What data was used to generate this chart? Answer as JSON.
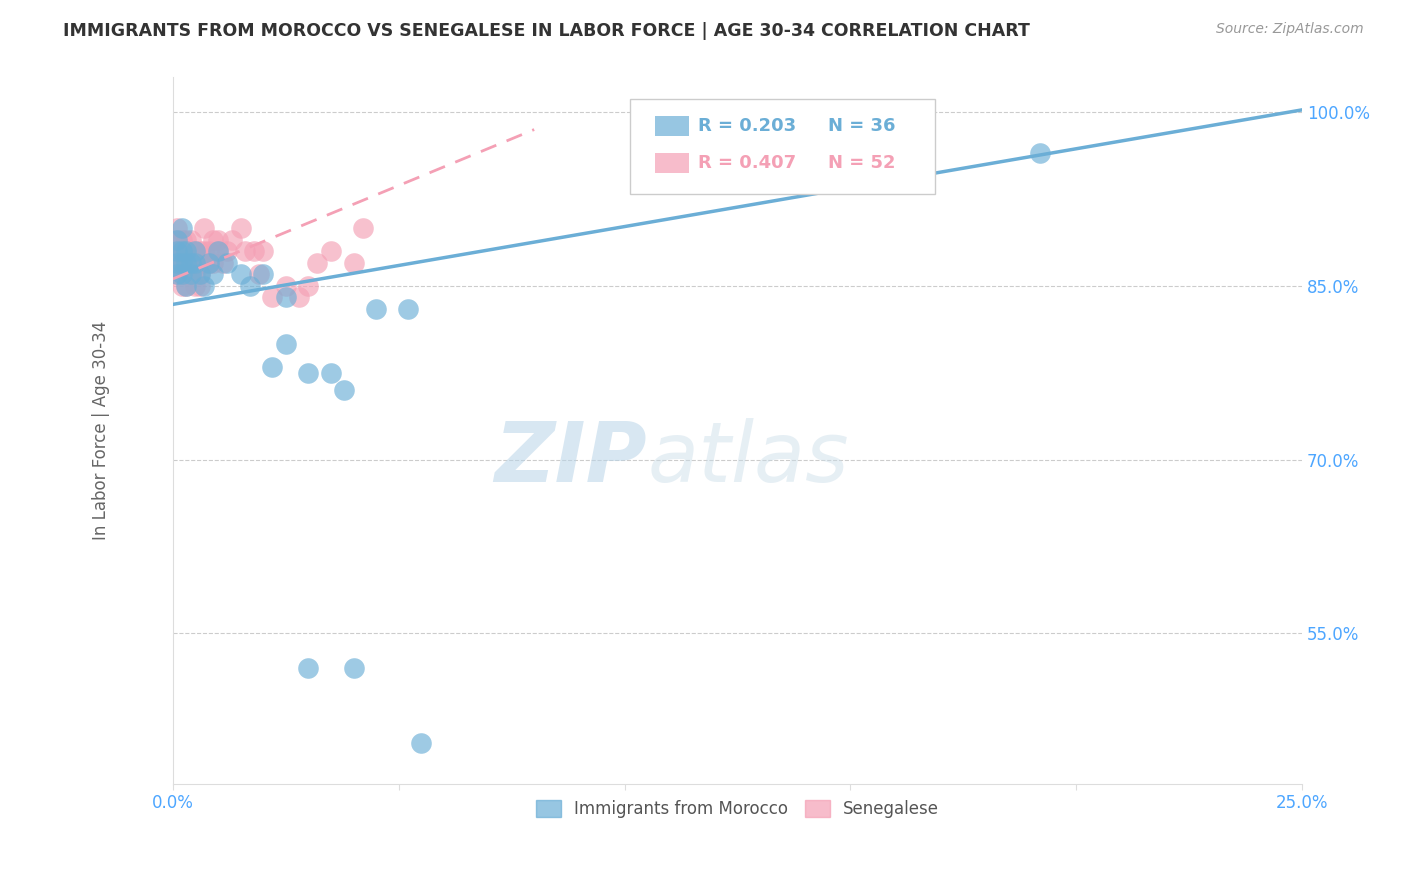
{
  "title": "IMMIGRANTS FROM MOROCCO VS SENEGALESE IN LABOR FORCE | AGE 30-34 CORRELATION CHART",
  "source": "Source: ZipAtlas.com",
  "ylabel": "In Labor Force | Age 30-34",
  "xlim": [
    0.0,
    0.25
  ],
  "ylim": [
    0.42,
    1.03
  ],
  "xticks": [
    0.0,
    0.05,
    0.1,
    0.15,
    0.2,
    0.25
  ],
  "xtick_labels": [
    "0.0%",
    "",
    "",
    "",
    "",
    "25.0%"
  ],
  "yticks": [
    0.55,
    0.7,
    0.85,
    1.0
  ],
  "ytick_labels": [
    "55.0%",
    "70.0%",
    "85.0%",
    "100.0%"
  ],
  "morocco_color": "#6baed6",
  "senegalese_color": "#f4a0b5",
  "morocco_R": 0.203,
  "morocco_N": 36,
  "senegalese_R": 0.407,
  "senegalese_N": 52,
  "watermark_zip": "ZIP",
  "watermark_atlas": "atlas",
  "background_color": "#ffffff",
  "grid_color": "#cccccc",
  "title_color": "#333333",
  "source_color": "#999999",
  "axis_label_color": "#666666",
  "tick_color": "#4da6ff",
  "morocco_x": [
    0.001,
    0.001,
    0.001,
    0.001,
    0.002,
    0.002,
    0.002,
    0.002,
    0.003,
    0.003,
    0.003,
    0.004,
    0.004,
    0.005,
    0.005,
    0.006,
    0.007,
    0.008,
    0.009,
    0.01,
    0.012,
    0.015,
    0.017,
    0.02,
    0.022,
    0.025,
    0.025,
    0.03,
    0.035,
    0.04,
    0.192,
    0.03,
    0.038,
    0.045,
    0.052,
    0.055
  ],
  "morocco_y": [
    0.88,
    0.87,
    0.86,
    0.89,
    0.88,
    0.87,
    0.9,
    0.86,
    0.87,
    0.88,
    0.85,
    0.87,
    0.86,
    0.88,
    0.87,
    0.86,
    0.85,
    0.87,
    0.86,
    0.88,
    0.87,
    0.86,
    0.85,
    0.86,
    0.78,
    0.84,
    0.8,
    0.775,
    0.775,
    0.52,
    0.965,
    0.52,
    0.76,
    0.83,
    0.83,
    0.455
  ],
  "senegalese_x": [
    0.001,
    0.001,
    0.001,
    0.001,
    0.001,
    0.002,
    0.002,
    0.002,
    0.002,
    0.002,
    0.003,
    0.003,
    0.003,
    0.003,
    0.003,
    0.004,
    0.004,
    0.004,
    0.004,
    0.005,
    0.005,
    0.005,
    0.005,
    0.006,
    0.006,
    0.006,
    0.006,
    0.007,
    0.007,
    0.007,
    0.008,
    0.008,
    0.009,
    0.009,
    0.01,
    0.01,
    0.011,
    0.012,
    0.013,
    0.015,
    0.016,
    0.018,
    0.019,
    0.02,
    0.022,
    0.025,
    0.028,
    0.03,
    0.032,
    0.035,
    0.04,
    0.042
  ],
  "senegalese_y": [
    0.88,
    0.87,
    0.89,
    0.86,
    0.9,
    0.88,
    0.87,
    0.86,
    0.89,
    0.85,
    0.88,
    0.87,
    0.89,
    0.86,
    0.85,
    0.88,
    0.87,
    0.86,
    0.89,
    0.88,
    0.87,
    0.86,
    0.85,
    0.88,
    0.87,
    0.86,
    0.85,
    0.9,
    0.88,
    0.87,
    0.88,
    0.87,
    0.89,
    0.87,
    0.89,
    0.88,
    0.87,
    0.88,
    0.89,
    0.9,
    0.88,
    0.88,
    0.86,
    0.88,
    0.84,
    0.85,
    0.84,
    0.85,
    0.87,
    0.88,
    0.87,
    0.9
  ],
  "morocco_trend_x": [
    0.0,
    0.25
  ],
  "morocco_trend_y": [
    0.834,
    1.002
  ],
  "senegalese_trend_x": [
    0.0,
    0.08
  ],
  "senegalese_trend_y": [
    0.856,
    0.985
  ]
}
